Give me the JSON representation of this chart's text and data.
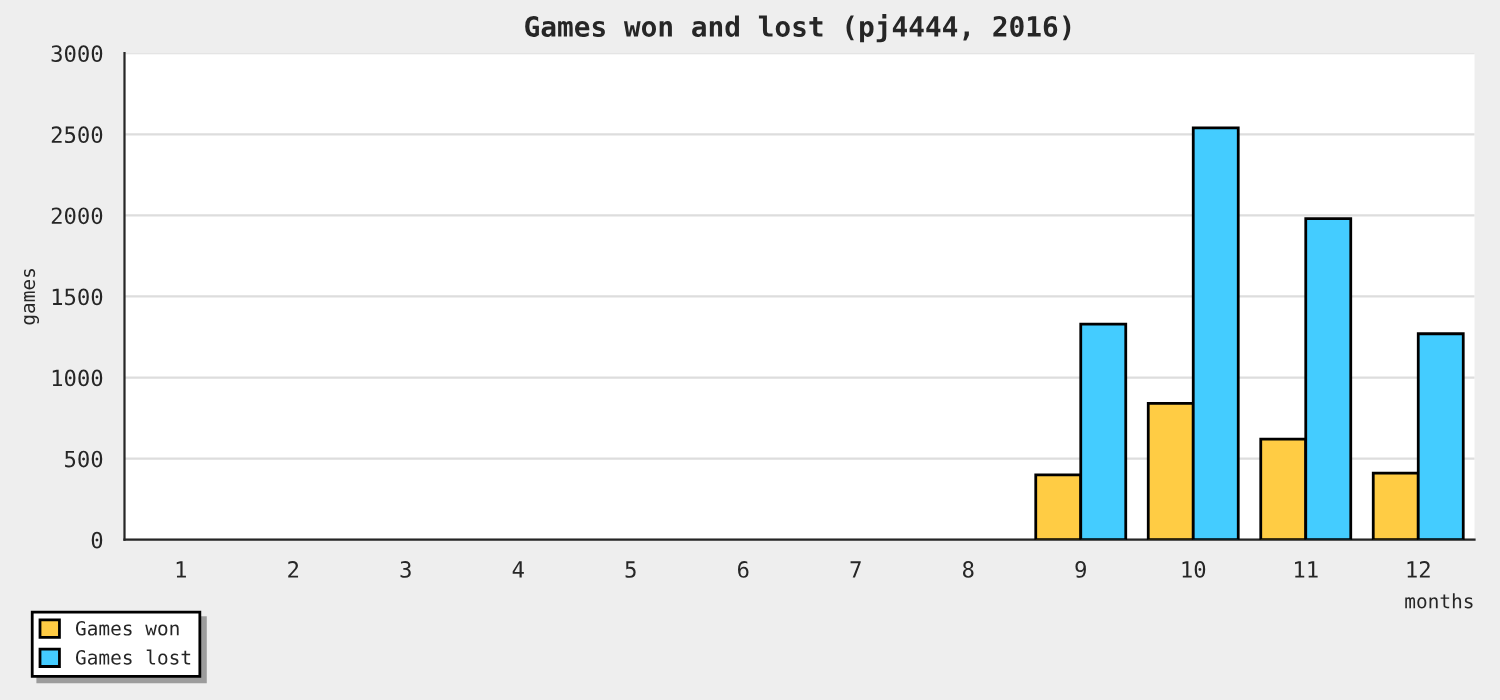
{
  "chart_data": {
    "type": "bar",
    "title": "Games won and lost (pj4444, 2016)",
    "xlabel": "months",
    "ylabel": "games",
    "categories": [
      "1",
      "2",
      "3",
      "4",
      "5",
      "6",
      "7",
      "8",
      "9",
      "10",
      "11",
      "12"
    ],
    "series": [
      {
        "name": "Games won",
        "color": "#ffcc44",
        "values": [
          0,
          0,
          0,
          0,
          0,
          0,
          0,
          0,
          400,
          840,
          620,
          410
        ]
      },
      {
        "name": "Games lost",
        "color": "#44ccff",
        "values": [
          0,
          0,
          0,
          0,
          0,
          0,
          0,
          0,
          1330,
          2540,
          1980,
          1270
        ]
      }
    ],
    "ylim": [
      0,
      3000
    ],
    "yticks": [
      0,
      500,
      1000,
      1500,
      2000,
      2500,
      3000
    ],
    "grid": "y",
    "legend": "bottom left"
  }
}
